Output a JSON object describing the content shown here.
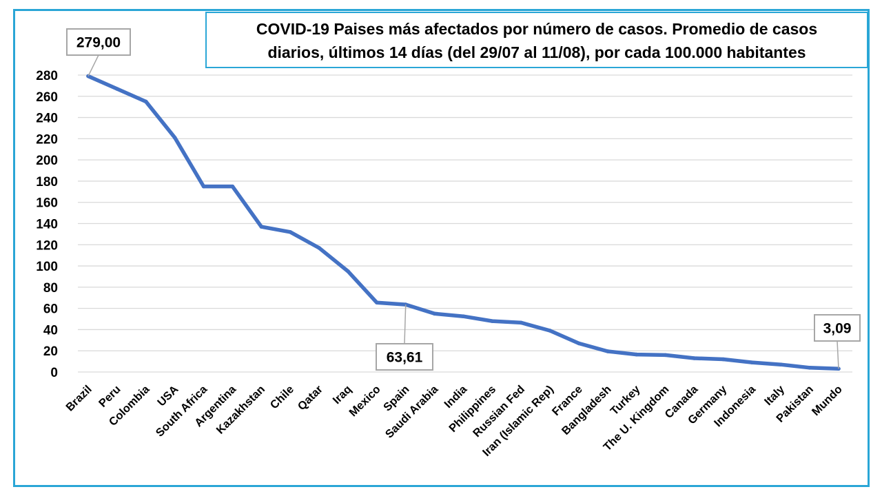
{
  "chart_data": {
    "type": "line",
    "title": "COVID-19 Paises más afectados por número de casos. Promedio de casos diarios, últimos 14 días (del 29/07 al 11/08), por cada 100.000 habitantes",
    "title_lines": [
      "COVID-19 Paises más afectados por número de casos. Promedio de casos",
      "diarios, últimos 14 días (del 29/07 al 11/08), por cada  100.000 habitantes"
    ],
    "xlabel": "",
    "ylabel": "",
    "ylim": [
      0,
      280
    ],
    "yticks": [
      0,
      20,
      40,
      60,
      80,
      100,
      120,
      140,
      160,
      180,
      200,
      220,
      240,
      260,
      280
    ],
    "grid": true,
    "legend": "none",
    "line_color": "#4472c4",
    "categories": [
      "Brazil",
      "Peru",
      "Colombia",
      "USA",
      "South Africa",
      "Argentina",
      "Kazakhstan",
      "Chile",
      "Qatar",
      "Iraq",
      "Mexico",
      "Spain",
      "Saudi Arabia",
      "India",
      "Philippines",
      "Russian Fed",
      "Iran (Islamic Rep)",
      "France",
      "Bangladesh",
      "Turkey",
      "The U. Kingdom",
      "Canada",
      "Germany",
      "Indonesia",
      "Italy",
      "Pakistan",
      "Mundo"
    ],
    "series": [
      {
        "values": [
          279.0,
          267,
          255,
          221,
          175,
          175,
          137,
          132,
          117,
          95,
          65.5,
          63.61,
          55,
          52.5,
          48,
          46.5,
          39,
          27,
          19.5,
          16.5,
          16,
          13,
          12,
          9,
          7,
          4,
          3.09
        ]
      }
    ],
    "annotations": [
      {
        "category": "Brazil",
        "label": "279,00"
      },
      {
        "category": "Spain",
        "label": "63,61"
      },
      {
        "category": "Mundo",
        "label": "3,09"
      }
    ]
  }
}
